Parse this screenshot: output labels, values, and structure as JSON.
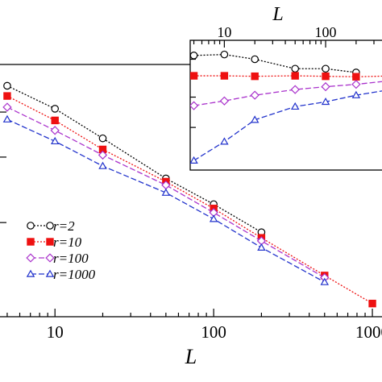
{
  "chart_data": [
    {
      "panel": "main",
      "type": "line",
      "x_scale": "log",
      "y_scale": "log",
      "xlabel": "L",
      "ylabel": "",
      "xlim": [
        4.4,
        1150
      ],
      "x_ticks": [
        10,
        100,
        1000
      ],
      "x_tick_labels": [
        "10",
        "100",
        "1000"
      ],
      "legend_position": "lower-left",
      "series": [
        {
          "name": "r=2",
          "marker": "open-circle",
          "line": "dotted",
          "color": "#000000",
          "x": [
            5,
            10,
            20,
            50,
            100,
            200
          ],
          "y": [
            1.0,
            0.64,
            0.36,
            0.165,
            0.1,
            0.058
          ]
        },
        {
          "name": "r=10",
          "marker": "filled-square",
          "line": "dotted",
          "color": "#ee1111",
          "x": [
            5,
            10,
            20,
            50,
            100,
            200,
            500,
            1000
          ],
          "y": [
            0.82,
            0.51,
            0.29,
            0.155,
            0.092,
            0.052,
            0.025,
            0.0145
          ]
        },
        {
          "name": "r=100",
          "marker": "open-diamond",
          "line": "dashed",
          "color": "#aa33cc",
          "x": [
            5,
            10,
            20,
            50,
            100,
            200,
            500
          ],
          "y": [
            0.66,
            0.42,
            0.26,
            0.145,
            0.085,
            0.049,
            0.024
          ]
        },
        {
          "name": "r=1000",
          "marker": "open-triangle",
          "line": "dashed",
          "color": "#2233cc",
          "x": [
            5,
            10,
            20,
            50,
            100,
            200,
            500
          ],
          "y": [
            0.52,
            0.34,
            0.21,
            0.125,
            0.075,
            0.043,
            0.022
          ]
        }
      ]
    },
    {
      "panel": "inset",
      "type": "line",
      "x_scale": "log",
      "xlabel": "L",
      "xlim": [
        4.6,
        300
      ],
      "x_ticks": [
        10,
        100
      ],
      "x_tick_labels": [
        "10",
        "100"
      ],
      "series": [
        {
          "name": "r=2",
          "marker": "open-circle",
          "line": "dotted",
          "color": "#000000",
          "x": [
            5,
            10,
            20,
            50,
            100,
            200
          ],
          "y": [
            0.96,
            0.97,
            0.92,
            0.82,
            0.82,
            0.78
          ]
        },
        {
          "name": "r=10",
          "marker": "filled-square",
          "line": "dotted",
          "color": "#ee1111",
          "x": [
            5,
            10,
            20,
            50,
            100,
            200,
            500
          ],
          "y": [
            0.745,
            0.745,
            0.74,
            0.745,
            0.74,
            0.735,
            0.745
          ]
        },
        {
          "name": "r=100",
          "marker": "open-diamond",
          "line": "dashed",
          "color": "#aa33cc",
          "x": [
            5,
            10,
            20,
            50,
            100,
            200,
            500
          ],
          "y": [
            0.43,
            0.48,
            0.54,
            0.6,
            0.63,
            0.655,
            0.7
          ]
        },
        {
          "name": "r=1000",
          "marker": "open-triangle",
          "line": "dashed",
          "color": "#2233cc",
          "x": [
            5,
            10,
            20,
            50,
            100,
            200,
            500
          ],
          "y": [
            -0.15,
            0.05,
            0.28,
            0.42,
            0.47,
            0.54,
            0.61
          ]
        }
      ]
    }
  ]
}
